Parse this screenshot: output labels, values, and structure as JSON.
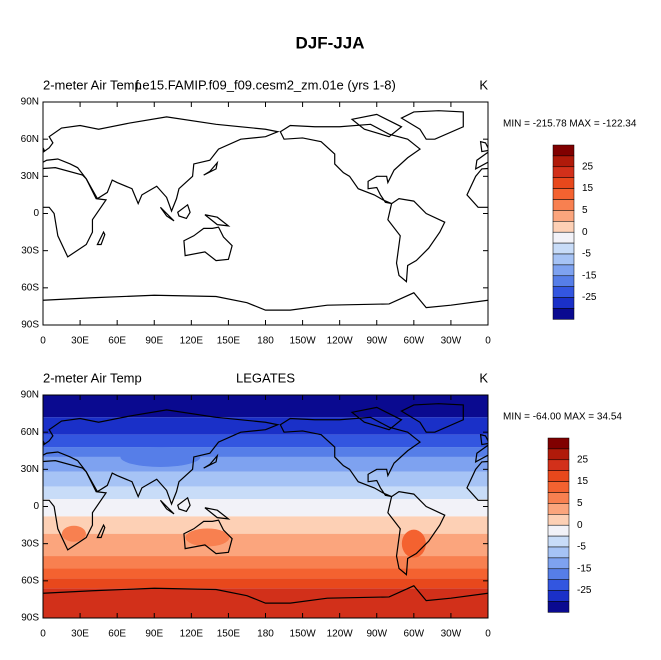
{
  "title": "DJF-JJA",
  "panels": [
    {
      "left_title": "2-meter Air Temp",
      "center_title": "f.e15.FAMIP.f09_f09.cesm2_zm.01e (yrs 1-8)",
      "units": "K",
      "stats": "MIN = -215.78 MAX = -122.34",
      "lat_labels": [
        "90N",
        "60N",
        "30N",
        "0",
        "30S",
        "60S",
        "90S"
      ],
      "lon_labels": [
        "0",
        "30E",
        "60E",
        "90E",
        "120E",
        "150E",
        "180",
        "150W",
        "120W",
        "90W",
        "60W",
        "30W",
        "0"
      ],
      "colorbar_labels": [
        "25",
        "15",
        "5",
        "0",
        "-5",
        "-15",
        "-25"
      ]
    },
    {
      "left_title": "2-meter Air Temp",
      "center_title": "LEGATES",
      "units": "K",
      "stats": "MIN = -64.00 MAX =  34.54",
      "lat_labels": [
        "90N",
        "60N",
        "30N",
        "0",
        "30S",
        "60S",
        "90S"
      ],
      "lon_labels": [
        "0",
        "30E",
        "60E",
        "90E",
        "120E",
        "150E",
        "180",
        "150W",
        "120W",
        "90W",
        "60W",
        "30W",
        "0"
      ],
      "colorbar_labels": [
        "25",
        "15",
        "5",
        "0",
        "-5",
        "-15",
        "-25"
      ]
    }
  ],
  "colorbar_colors": [
    "#800000",
    "#b01a0a",
    "#d2301a",
    "#e8481c",
    "#f46230",
    "#f88050",
    "#fba57d",
    "#fdd0b5",
    "#f2f2f8",
    "#c8dcf8",
    "#a6c3f5",
    "#7ea2f0",
    "#567ee8",
    "#3356e0",
    "#1a30c8",
    "#0a0a90"
  ]
}
